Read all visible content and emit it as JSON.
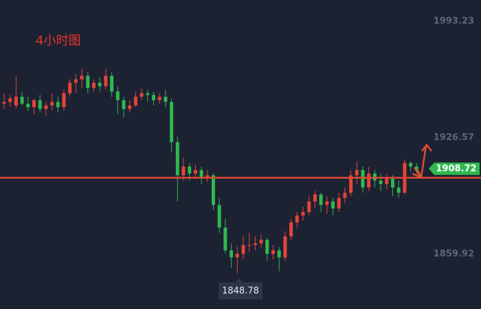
{
  "chart_data": {
    "type": "candlestick",
    "title": "4小时图",
    "ylim": [
      1828.4,
      2005.4
    ],
    "yticks": [
      1993.23,
      1926.57,
      1859.92
    ],
    "up_color": "#e5453a",
    "down_color": "#2fb84f",
    "level": 1903.6,
    "level_color": "#e24a33",
    "last_price": 1908.72,
    "low_label": 1848.78,
    "candles": [
      [
        1946,
        1952,
        1943,
        1947
      ],
      [
        1947,
        1951,
        1944,
        1949
      ],
      [
        1945,
        1962,
        1943,
        1950
      ],
      [
        1950,
        1953,
        1945,
        1946
      ],
      [
        1946,
        1950,
        1942,
        1944
      ],
      [
        1944,
        1949,
        1940,
        1948
      ],
      [
        1948,
        1951,
        1941,
        1943
      ],
      [
        1943,
        1947,
        1939,
        1945
      ],
      [
        1945,
        1952,
        1942,
        1947
      ],
      [
        1947,
        1950,
        1941,
        1944
      ],
      [
        1944,
        1954,
        1942,
        1952
      ],
      [
        1952,
        1960,
        1950,
        1958
      ],
      [
        1958,
        1963,
        1952,
        1960
      ],
      [
        1960,
        1966,
        1955,
        1962
      ],
      [
        1962,
        1964,
        1952,
        1955
      ],
      [
        1955,
        1960,
        1953,
        1958
      ],
      [
        1958,
        1961,
        1953,
        1956
      ],
      [
        1956,
        1966,
        1954,
        1962
      ],
      [
        1962,
        1964,
        1950,
        1953
      ],
      [
        1953,
        1956,
        1940,
        1948
      ],
      [
        1948,
        1950,
        1938,
        1943
      ],
      [
        1943,
        1948,
        1941,
        1945
      ],
      [
        1945,
        1953,
        1944,
        1950
      ],
      [
        1950,
        1955,
        1948,
        1952
      ],
      [
        1952,
        1954,
        1947,
        1951
      ],
      [
        1951,
        1953,
        1945,
        1948
      ],
      [
        1948,
        1952,
        1946,
        1950
      ],
      [
        1950,
        1954,
        1944,
        1947
      ],
      [
        1947,
        1949,
        1918,
        1924
      ],
      [
        1924,
        1927,
        1890,
        1905
      ],
      [
        1905,
        1915,
        1902,
        1910
      ],
      [
        1910,
        1912,
        1902,
        1906
      ],
      [
        1906,
        1911,
        1903,
        1908
      ],
      [
        1908,
        1910,
        1900,
        1904
      ],
      [
        1904,
        1908,
        1901,
        1905
      ],
      [
        1905,
        1906,
        1885,
        1888
      ],
      [
        1888,
        1892,
        1872,
        1875
      ],
      [
        1875,
        1880,
        1860,
        1862
      ],
      [
        1862,
        1866,
        1852,
        1858
      ],
      [
        1858,
        1864,
        1848.78,
        1860
      ],
      [
        1860,
        1870,
        1857,
        1865
      ],
      [
        1865,
        1872,
        1861,
        1865
      ],
      [
        1865,
        1870,
        1862,
        1866
      ],
      [
        1866,
        1871,
        1863,
        1868
      ],
      [
        1868,
        1869,
        1856,
        1860
      ],
      [
        1860,
        1865,
        1857,
        1862
      ],
      [
        1862,
        1864,
        1850,
        1858
      ],
      [
        1858,
        1873,
        1856,
        1870
      ],
      [
        1870,
        1880,
        1868,
        1878
      ],
      [
        1878,
        1884,
        1875,
        1882
      ],
      [
        1882,
        1887,
        1879,
        1884
      ],
      [
        1884,
        1893,
        1882,
        1890
      ],
      [
        1890,
        1896,
        1886,
        1894
      ],
      [
        1894,
        1895,
        1884,
        1888
      ],
      [
        1888,
        1893,
        1883,
        1890
      ],
      [
        1890,
        1892,
        1882,
        1886
      ],
      [
        1886,
        1895,
        1884,
        1892
      ],
      [
        1892,
        1898,
        1889,
        1895
      ],
      [
        1895,
        1908,
        1893,
        1905
      ],
      [
        1905,
        1913,
        1900,
        1908
      ],
      [
        1908,
        1910,
        1895,
        1898
      ],
      [
        1898,
        1910,
        1896,
        1906
      ],
      [
        1906,
        1908,
        1898,
        1902
      ],
      [
        1902,
        1906,
        1896,
        1900
      ],
      [
        1900,
        1906,
        1897,
        1903
      ],
      [
        1903,
        1905,
        1893,
        1898
      ],
      [
        1898,
        1902,
        1892,
        1895
      ],
      [
        1895,
        1914,
        1894,
        1912
      ],
      [
        1912,
        1913,
        1907,
        1910
      ],
      [
        1910,
        1912,
        1906,
        1908.72
      ]
    ]
  }
}
